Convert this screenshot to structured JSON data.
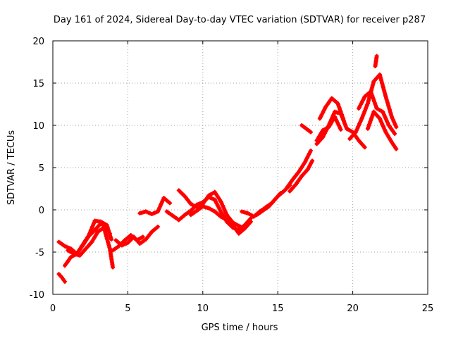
{
  "chart_data": {
    "type": "scatter",
    "title": "Day 161 of 2024, Sidereal Day-to-day VTEC variation (SDTVAR) for receiver p287",
    "xlabel": "GPS time / hours",
    "ylabel": "SDTVAR / TECUs",
    "xlim": [
      0,
      25
    ],
    "ylim": [
      -10,
      20
    ],
    "xticks": [
      "0",
      "5",
      "10",
      "15",
      "20",
      "25"
    ],
    "yticks": [
      "-10",
      "-5",
      "0",
      "5",
      "10",
      "15",
      "20"
    ],
    "grid": true,
    "legend": "none",
    "marker": "plus",
    "color": "#ff0000",
    "series": [
      {
        "x": [
          0.4,
          0.6,
          0.8
        ],
        "y": [
          -7.6,
          -8.0,
          -8.5
        ]
      },
      {
        "x": [
          0.4,
          0.8,
          1.2,
          1.6,
          2.0,
          2.4,
          2.8,
          3.2,
          3.6,
          3.8
        ],
        "y": [
          -3.8,
          -4.3,
          -4.6,
          -5.2,
          -4.2,
          -3.1,
          -2.4,
          -1.6,
          -2.2,
          -2.8
        ]
      },
      {
        "x": [
          0.8,
          1.2,
          1.6,
          2.0,
          2.4,
          2.8,
          3.2,
          3.6,
          3.9
        ],
        "y": [
          -6.6,
          -5.6,
          -5.2,
          -4.1,
          -3.0,
          -1.3,
          -1.4,
          -1.8,
          -3.5
        ]
      },
      {
        "x": [
          1.0,
          1.4,
          1.8,
          2.2,
          2.6,
          3.0,
          3.4,
          3.8,
          4.0
        ],
        "y": [
          -4.8,
          -5.2,
          -5.4,
          -4.6,
          -3.8,
          -2.6,
          -2.1,
          -4.6,
          -6.8
        ]
      },
      {
        "x": [
          4.2,
          4.6,
          5.0,
          5.4,
          5.8,
          6.2,
          6.6,
          7.0
        ],
        "y": [
          -3.6,
          -4.2,
          -3.9,
          -3.2,
          -4.0,
          -3.5,
          -2.6,
          -2.0
        ]
      },
      {
        "x": [
          4.0,
          4.4,
          4.8,
          5.2,
          5.6,
          6.0
        ],
        "y": [
          -4.8,
          -4.3,
          -3.6,
          -3.0,
          -3.6,
          -3.2
        ]
      },
      {
        "x": [
          5.8,
          6.2,
          6.6,
          7.0,
          7.4,
          7.8
        ],
        "y": [
          -0.4,
          -0.2,
          -0.5,
          -0.2,
          1.4,
          0.8
        ]
      },
      {
        "x": [
          7.6,
          8.0,
          8.4,
          8.8,
          9.2,
          9.6,
          10.0,
          10.4,
          10.8,
          11.2,
          11.6,
          12.0,
          12.4,
          12.8,
          13.2
        ],
        "y": [
          -0.2,
          -0.7,
          -1.2,
          -0.6,
          -0.1,
          0.6,
          0.9,
          1.5,
          1.2,
          -0.2,
          -1.4,
          -2.1,
          -2.4,
          -1.8,
          -1.0
        ]
      },
      {
        "x": [
          8.4,
          8.8,
          9.2,
          9.6,
          10.0,
          10.4,
          10.8,
          11.2,
          11.6,
          12.0,
          12.4,
          12.8,
          13.2
        ],
        "y": [
          2.3,
          1.6,
          0.7,
          0.3,
          0.7,
          1.7,
          2.1,
          1.0,
          -0.6,
          -1.5,
          -1.9,
          -2.2,
          -1.4
        ]
      },
      {
        "x": [
          9.2,
          9.6,
          10.0,
          10.4,
          10.8,
          11.2,
          11.6,
          12.0,
          12.4,
          12.8
        ],
        "y": [
          -0.6,
          -0.1,
          0.4,
          0.2,
          -0.2,
          -0.8,
          -1.2,
          -1.8,
          -2.8,
          -2.2
        ]
      },
      {
        "x": [
          12.6,
          13.0,
          13.4,
          13.8,
          14.2,
          14.6,
          15.0,
          15.4,
          15.8
        ],
        "y": [
          -0.2,
          -0.4,
          -0.8,
          -0.2,
          0.3,
          0.8,
          1.6,
          2.2,
          2.9
        ]
      },
      {
        "x": [
          13.6,
          14.0,
          14.4,
          14.8,
          15.2
        ],
        "y": [
          -0.6,
          -0.1,
          0.4,
          1.2,
          2.0
        ]
      },
      {
        "x": [
          15.6,
          16.0,
          16.4,
          16.8,
          17.2
        ],
        "y": [
          2.6,
          3.6,
          4.5,
          5.6,
          7.0
        ]
      },
      {
        "x": [
          15.8,
          16.2,
          16.6,
          17.0,
          17.3
        ],
        "y": [
          2.2,
          3.0,
          4.0,
          4.8,
          5.8
        ]
      },
      {
        "x": [
          16.6,
          16.9,
          17.2
        ],
        "y": [
          10.0,
          9.6,
          9.2
        ]
      },
      {
        "x": [
          17.6,
          18.0,
          18.4,
          18.8,
          19.2,
          19.6,
          20.0,
          20.4,
          20.8
        ],
        "y": [
          7.8,
          8.6,
          10.0,
          11.6,
          11.4,
          9.6,
          9.2,
          8.2,
          7.4
        ]
      },
      {
        "x": [
          17.8,
          18.2,
          18.6,
          19.0,
          19.4
        ],
        "y": [
          10.8,
          12.2,
          13.2,
          12.6,
          10.6
        ]
      },
      {
        "x": [
          17.6,
          18.0,
          18.4,
          18.8,
          19.2
        ],
        "y": [
          8.2,
          9.4,
          9.8,
          11.0,
          9.5
        ]
      },
      {
        "x": [
          19.8,
          20.2,
          20.6,
          21.0,
          21.4,
          21.8,
          22.2,
          22.6,
          22.9
        ],
        "y": [
          8.4,
          9.2,
          10.8,
          12.6,
          15.2,
          16.0,
          13.4,
          11.0,
          9.8
        ]
      },
      {
        "x": [
          20.4,
          20.8,
          21.2,
          21.6,
          22.0,
          22.4,
          22.8
        ],
        "y": [
          12.0,
          13.4,
          14.0,
          12.0,
          11.6,
          10.0,
          9.0
        ]
      },
      {
        "x": [
          21.0,
          21.4,
          21.8,
          22.2,
          22.6,
          22.9
        ],
        "y": [
          9.6,
          11.6,
          10.8,
          9.2,
          8.0,
          7.2
        ]
      },
      {
        "x": [
          21.5,
          21.6
        ],
        "y": [
          17.0,
          18.2
        ]
      }
    ]
  }
}
